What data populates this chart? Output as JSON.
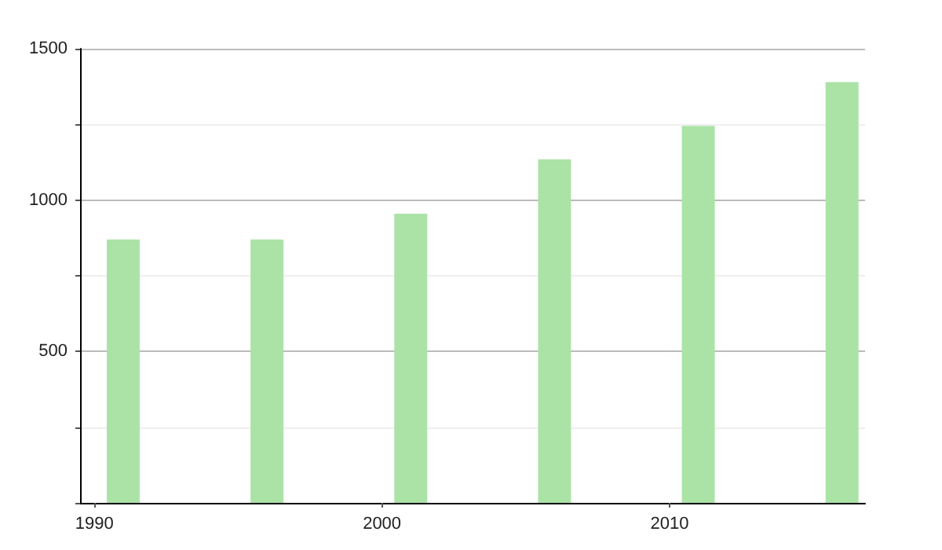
{
  "chart_data": {
    "type": "bar",
    "x": [
      1991,
      1996,
      2001,
      2006,
      2011,
      2016
    ],
    "values": [
      870,
      870,
      955,
      1135,
      1245,
      1390
    ],
    "color": "#abe3a7",
    "xlim": [
      1989.5,
      2016.8
    ],
    "xticks": [
      1990,
      2000,
      2010
    ],
    "ylim": [
      0,
      1500
    ],
    "yticks": [
      {
        "value": 0,
        "label": null
      },
      {
        "value": 250,
        "label": null
      },
      500,
      {
        "value": 750,
        "label": null
      },
      1000,
      {
        "value": 1250,
        "label": null
      },
      1500
    ],
    "grid": "y"
  }
}
